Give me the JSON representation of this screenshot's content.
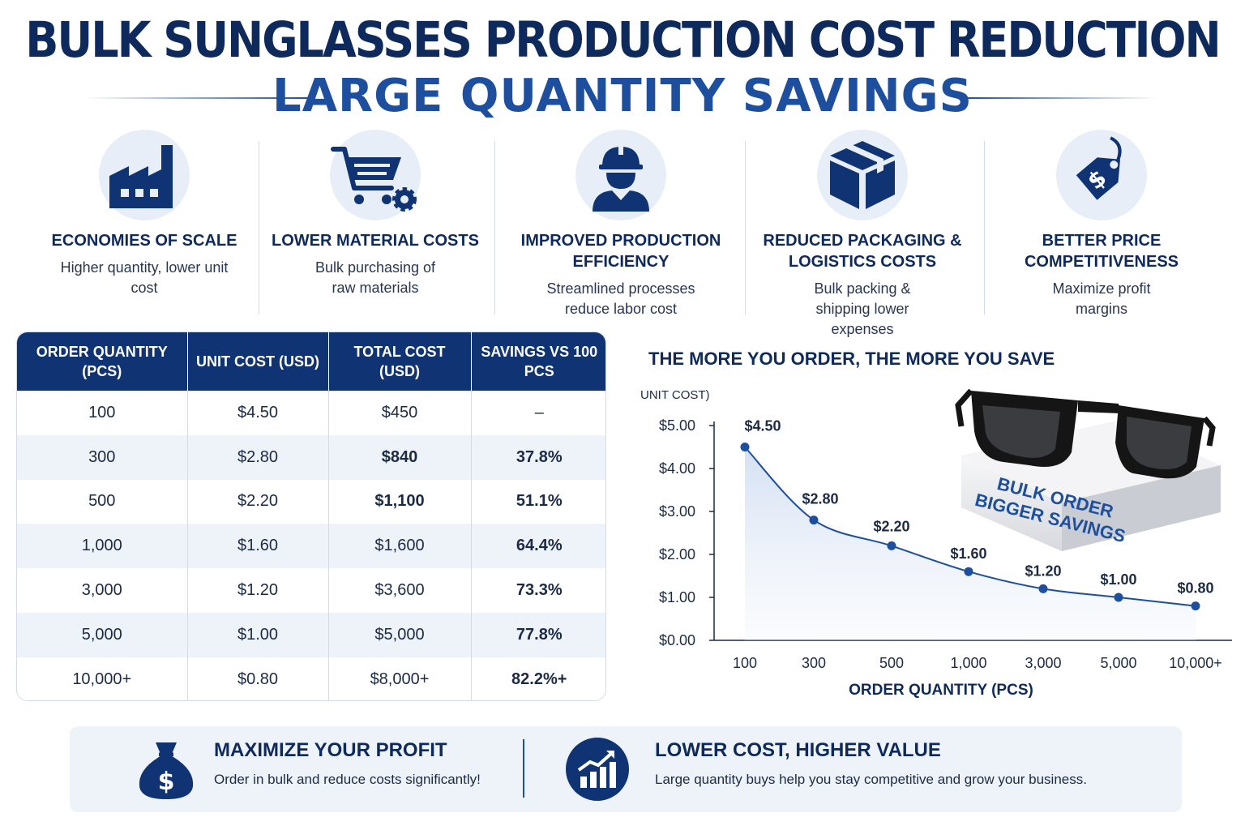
{
  "header": {
    "title": "BULK SUNGLASSES PRODUCTION COST REDUCTION",
    "subtitle": "LARGE QUANTITY SAVINGS"
  },
  "colors": {
    "navy": "#0e2a5c",
    "blue": "#1d4f9e",
    "header_bg": "#103473",
    "light_bg": "#eef3fa"
  },
  "features": [
    {
      "icon": "factory-icon",
      "title": "ECONOMIES OF SCALE",
      "desc": "Higher quantity, lower unit cost"
    },
    {
      "icon": "cart-gear-icon",
      "title": "LOWER MATERIAL COSTS",
      "desc": "Bulk purchasing of raw materials"
    },
    {
      "icon": "worker-icon",
      "title": "IMPROVED PRODUCTION EFFICIENCY",
      "desc": "Streamlined processes reduce labor cost"
    },
    {
      "icon": "box-icon",
      "title": "REDUCED PACKAGING & LOGISTICS COSTS",
      "desc": "Bulk packing & shipping lower expenses"
    },
    {
      "icon": "price-tag-icon",
      "title": "BETTER PRICE COMPETITIVENESS",
      "desc": "Maximize profit margins"
    }
  ],
  "table": {
    "headers": [
      "ORDER QUANTITY (PCS)",
      "UNIT COST (USD)",
      "TOTAL COST (USD)",
      "SAVINGS VS 100 PCS"
    ],
    "rows": [
      [
        "100",
        "$4.50",
        "$450",
        "–"
      ],
      [
        "300",
        "$2.80",
        "$840",
        "37.8%"
      ],
      [
        "500",
        "$2.20",
        "$1,100",
        "51.1%"
      ],
      [
        "1,000",
        "$1.60",
        "$1,600",
        "64.4%"
      ],
      [
        "3,000",
        "$1.20",
        "$3,600",
        "73.3%"
      ],
      [
        "5,000",
        "$1.00",
        "$5,000",
        "77.8%"
      ],
      [
        "10,000+",
        "$0.80",
        "$8,000+",
        "82.2%+"
      ]
    ]
  },
  "chart_data": {
    "type": "line",
    "title": "THE MORE YOU ORDER, THE MORE YOU SAVE",
    "ylabel": "UNIT COST)",
    "xlabel": "ORDER QUANTITY (PCS)",
    "categories": [
      "100",
      "300",
      "500",
      "1,000",
      "3,000",
      "5,000",
      "10,000+"
    ],
    "values": [
      4.5,
      2.8,
      2.2,
      1.6,
      1.2,
      1.0,
      0.8
    ],
    "data_labels": [
      "$4.50",
      "$2.80",
      "$2.20",
      "$1.60",
      "$1.20",
      "$1.00",
      "$0.80"
    ],
    "yticks": [
      "$0.00",
      "$1.00",
      "$2.00",
      "$3.00",
      "$4.00",
      "$5.00"
    ],
    "ylim": [
      0,
      5
    ],
    "grid": false,
    "box_text": [
      "BULK ORDER",
      "BIGGER SAVINGS"
    ]
  },
  "bottom": {
    "left": {
      "icon": "money-bag-icon",
      "title": "MAXIMIZE YOUR PROFIT",
      "desc": "Order in bulk and reduce costs significantly!"
    },
    "right": {
      "icon": "growth-chart-icon",
      "title": "LOWER COST, HIGHER VALUE",
      "desc": "Large quantity buys help you stay competitive and grow your business."
    }
  }
}
